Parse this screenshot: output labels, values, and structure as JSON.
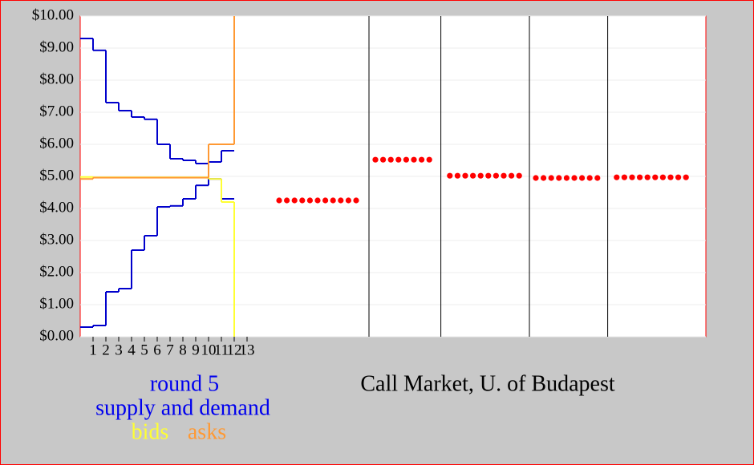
{
  "chart_data": {
    "type": "step",
    "title": "Call Market, U. of Budapest",
    "legend_title": "round 5",
    "xlim": [
      0,
      48.75
    ],
    "ylim": [
      0,
      10
    ],
    "xticks": [
      1,
      2,
      3,
      4,
      5,
      6,
      7,
      8,
      9,
      10,
      11,
      12,
      13
    ],
    "yticks": [
      {
        "value": 0,
        "label": "$0.00"
      },
      {
        "value": 1,
        "label": "$1.00"
      },
      {
        "value": 2,
        "label": "$2.00"
      },
      {
        "value": 3,
        "label": "$3.00"
      },
      {
        "value": 4,
        "label": "$4.00"
      },
      {
        "value": 5,
        "label": "$5.00"
      },
      {
        "value": 6,
        "label": "$6.00"
      },
      {
        "value": 7,
        "label": "$7.00"
      },
      {
        "value": 8,
        "label": "$8.00"
      },
      {
        "value": 9,
        "label": "$9.00"
      },
      {
        "value": 10,
        "label": "$10.00"
      }
    ],
    "grid": true,
    "round_dividers": [
      22.5,
      28.1,
      35,
      41.1
    ],
    "series": [
      {
        "name": "supply and demand",
        "color": "#0000cc",
        "x": [
          0,
          1,
          2,
          3,
          4,
          5,
          6,
          7,
          8,
          9,
          10,
          11
        ],
        "supply": [
          0.3,
          0.35,
          1.4,
          1.5,
          2.7,
          3.15,
          4.05,
          4.08,
          4.3,
          4.72,
          5.45,
          5.8
        ],
        "demand": [
          9.3,
          8.93,
          7.3,
          7.05,
          6.85,
          6.78,
          6.0,
          5.55,
          5.5,
          5.4,
          4.92,
          4.3
        ]
      },
      {
        "name": "bids",
        "color": "#ffff33",
        "x": [
          0,
          1,
          2,
          3,
          4,
          5,
          6,
          7,
          8,
          9,
          10,
          11
        ],
        "values": [
          4.98,
          4.97,
          4.97,
          4.97,
          4.97,
          4.97,
          4.97,
          4.97,
          4.97,
          4.97,
          4.92,
          4.2
        ]
      },
      {
        "name": "asks",
        "color": "#ff9933",
        "x": [
          0,
          1,
          2,
          3,
          4,
          5,
          6,
          7,
          8,
          9,
          10,
          11
        ],
        "values": [
          4.92,
          4.96,
          4.96,
          4.96,
          4.96,
          4.96,
          4.96,
          4.96,
          4.96,
          4.96,
          6.0,
          6.0
        ]
      }
    ],
    "price_points": {
      "color": "#ff0000",
      "x": [
        15.5,
        16.1,
        16.7,
        17.3,
        17.9,
        18.5,
        19.1,
        19.7,
        20.3,
        20.9,
        21.5,
        23.0,
        23.6,
        24.2,
        24.8,
        25.4,
        26.0,
        26.6,
        27.2,
        28.8,
        29.4,
        30.0,
        30.6,
        31.2,
        31.8,
        32.4,
        33.0,
        33.6,
        34.2,
        35.5,
        36.1,
        36.7,
        37.3,
        37.9,
        38.5,
        39.1,
        39.7,
        40.3,
        41.8,
        42.4,
        43.0,
        43.6,
        44.2,
        44.8,
        45.4,
        46.0,
        46.6,
        47.2
      ],
      "values": [
        4.25,
        4.25,
        4.25,
        4.25,
        4.25,
        4.25,
        4.25,
        4.25,
        4.25,
        4.25,
        4.25,
        5.52,
        5.52,
        5.52,
        5.52,
        5.52,
        5.52,
        5.52,
        5.52,
        5.02,
        5.02,
        5.02,
        5.02,
        5.02,
        5.02,
        5.02,
        5.02,
        5.02,
        5.02,
        4.95,
        4.95,
        4.95,
        4.95,
        4.95,
        4.95,
        4.95,
        4.95,
        4.95,
        4.97,
        4.97,
        4.97,
        4.97,
        4.97,
        4.97,
        4.97,
        4.97,
        4.97,
        4.97
      ]
    }
  }
}
